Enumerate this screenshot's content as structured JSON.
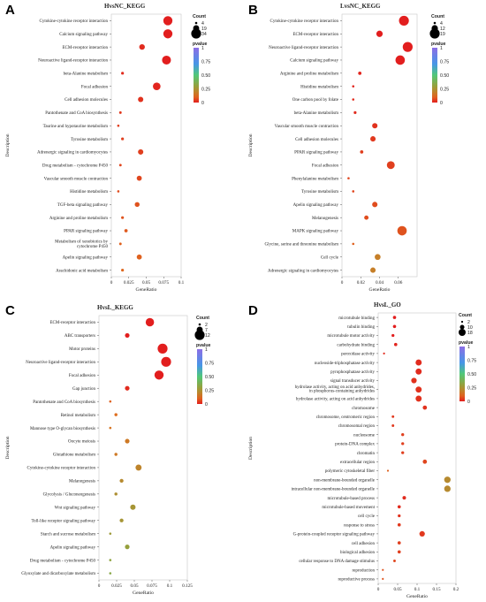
{
  "chart_data": [
    {
      "panel": "A",
      "type": "scatter",
      "title": "HvsNC_KEGG",
      "xlabel": "GeneRatio",
      "ylabel": "Description",
      "xlim": [
        0,
        0.1
      ],
      "xticks": [
        "0",
        "0.025",
        "0.05",
        "0.075",
        "0.1"
      ],
      "xtick_values": [
        0,
        0.025,
        0.05,
        0.075,
        0.1
      ],
      "size_legend": {
        "title": "Count",
        "entries": [
          "4",
          "19",
          "34"
        ],
        "values": [
          4,
          19,
          34
        ],
        "range": [
          4,
          34
        ]
      },
      "color_legend": {
        "title": "pvalue",
        "ticks": [
          "1",
          "0.75",
          "0.50",
          "0.25",
          "0"
        ]
      },
      "points": [
        {
          "category": "Cytokine-cytokine receptor interaction",
          "x": 0.081,
          "count": 31,
          "p": 0.0
        },
        {
          "category": "Calcium signaling pathway",
          "x": 0.081,
          "count": 31,
          "p": 0.0
        },
        {
          "category": "ECM-receptor interaction",
          "x": 0.044,
          "count": 17,
          "p": 0.02
        },
        {
          "category": "Neuroactive ligand-receptor interaction",
          "x": 0.079,
          "count": 30,
          "p": 0.0
        },
        {
          "category": "beta-Alanine metabolism",
          "x": 0.016,
          "count": 6,
          "p": 0.02
        },
        {
          "category": "Focal adhesion",
          "x": 0.065,
          "count": 25,
          "p": 0.01
        },
        {
          "category": "Cell adhesion molecules",
          "x": 0.042,
          "count": 16,
          "p": 0.03
        },
        {
          "category": "Pantothenate and CoA biosynthesis",
          "x": 0.013,
          "count": 5,
          "p": 0.04
        },
        {
          "category": "Taurine and hypotaurine metabolism",
          "x": 0.01,
          "count": 4,
          "p": 0.05
        },
        {
          "category": "Tyrosine metabolism",
          "x": 0.016,
          "count": 6,
          "p": 0.05
        },
        {
          "category": "Adrenergic signaling in cardiomyocytes",
          "x": 0.042,
          "count": 16,
          "p": 0.05
        },
        {
          "category": "Drug metabolism - cytochrome P450",
          "x": 0.013,
          "count": 5,
          "p": 0.06
        },
        {
          "category": "Vascular smooth muscle contraction",
          "x": 0.04,
          "count": 15,
          "p": 0.06
        },
        {
          "category": "Histidine metabolism",
          "x": 0.01,
          "count": 4,
          "p": 0.07
        },
        {
          "category": "TGF-beta signaling pathway",
          "x": 0.037,
          "count": 14,
          "p": 0.08
        },
        {
          "category": "Arginine and proline metabolism",
          "x": 0.016,
          "count": 6,
          "p": 0.08
        },
        {
          "category": "PPAR signaling pathway",
          "x": 0.021,
          "count": 8,
          "p": 0.09
        },
        {
          "category": "Metabolism of xenobiotics by cytochrome P450",
          "x": 0.013,
          "count": 5,
          "p": 0.1
        },
        {
          "category": "Apelin signaling pathway",
          "x": 0.04,
          "count": 15,
          "p": 0.1
        },
        {
          "category": "Arachidonic acid metabolism",
          "x": 0.016,
          "count": 6,
          "p": 0.11
        }
      ]
    },
    {
      "panel": "B",
      "type": "scatter",
      "title": "LvsNC_KEGG",
      "xlabel": "GeneRatio",
      "ylabel": "Description",
      "xlim": [
        0,
        0.08
      ],
      "xticks": [
        "0",
        "0.02",
        "0.04",
        "0.06"
      ],
      "xtick_values": [
        0,
        0.02,
        0.04,
        0.06
      ],
      "size_legend": {
        "title": "Count",
        "entries": [
          "4",
          "12",
          "19"
        ],
        "values": [
          4,
          12,
          19
        ],
        "range": [
          4,
          19
        ]
      },
      "color_legend": {
        "title": "pvalue",
        "ticks": [
          "1",
          "0.75",
          "0.50",
          "0.25",
          "0"
        ]
      },
      "points": [
        {
          "category": "Cytokine-cytokine receptor interaction",
          "x": 0.066,
          "count": 19,
          "p": 0.0
        },
        {
          "category": "ECM-receptor interaction",
          "x": 0.04,
          "count": 12,
          "p": 0.0
        },
        {
          "category": "Neuroactive ligand-receptor interaction",
          "x": 0.07,
          "count": 19,
          "p": 0.0
        },
        {
          "category": "Calcium signaling pathway",
          "x": 0.062,
          "count": 18,
          "p": 0.0
        },
        {
          "category": "Arginine and proline metabolism",
          "x": 0.019,
          "count": 6,
          "p": 0.01
        },
        {
          "category": "Histidine metabolism",
          "x": 0.012,
          "count": 4,
          "p": 0.01
        },
        {
          "category": "One carbon pool by folate",
          "x": 0.012,
          "count": 4,
          "p": 0.02
        },
        {
          "category": "beta-Alanine metabolism",
          "x": 0.014,
          "count": 5,
          "p": 0.02
        },
        {
          "category": "Vascular smooth muscle contraction",
          "x": 0.035,
          "count": 10,
          "p": 0.03
        },
        {
          "category": "Cell adhesion molecules",
          "x": 0.033,
          "count": 10,
          "p": 0.04
        },
        {
          "category": "PPAR signaling pathway",
          "x": 0.021,
          "count": 6,
          "p": 0.05
        },
        {
          "category": "Focal adhesion",
          "x": 0.052,
          "count": 15,
          "p": 0.05
        },
        {
          "category": "Phenylalanine metabolism",
          "x": 0.007,
          "count": 4,
          "p": 0.06
        },
        {
          "category": "Tyrosine metabolism",
          "x": 0.012,
          "count": 4,
          "p": 0.06
        },
        {
          "category": "Apelin signaling pathway",
          "x": 0.035,
          "count": 10,
          "p": 0.07
        },
        {
          "category": "Melanogenesis",
          "x": 0.026,
          "count": 8,
          "p": 0.07
        },
        {
          "category": "MAPK signaling pathway",
          "x": 0.064,
          "count": 18,
          "p": 0.08
        },
        {
          "category": "Glycine, serine and threonine metabolism",
          "x": 0.012,
          "count": 4,
          "p": 0.1
        },
        {
          "category": "Cell cycle",
          "x": 0.038,
          "count": 11,
          "p": 0.18
        },
        {
          "category": "Adrenergic signaling in cardiomyocytes",
          "x": 0.033,
          "count": 10,
          "p": 0.18
        }
      ]
    },
    {
      "panel": "C",
      "type": "scatter",
      "title": "HvsL_KEGG",
      "xlabel": "GeneRatio",
      "ylabel": "Description",
      "xlim": [
        0,
        0.125
      ],
      "xticks": [
        "0",
        "0.025",
        "0.05",
        "0.075",
        "0.1",
        "0.125"
      ],
      "xtick_values": [
        0,
        0.025,
        0.05,
        0.075,
        0.1,
        0.125
      ],
      "size_legend": {
        "title": "Count",
        "entries": [
          "2",
          "7",
          "12"
        ],
        "values": [
          2,
          7,
          12
        ],
        "range": [
          2,
          12
        ]
      },
      "color_legend": {
        "title": "pvalue",
        "ticks": [
          "1",
          "0.75",
          "0.50",
          "0.25",
          "0"
        ]
      },
      "points": [
        {
          "category": "ECM-receptor interaction",
          "x": 0.072,
          "count": 10,
          "p": 0.0
        },
        {
          "category": "ABC transporters",
          "x": 0.04,
          "count": 5,
          "p": 0.0
        },
        {
          "category": "Motor proteins",
          "x": 0.09,
          "count": 12,
          "p": 0.0
        },
        {
          "category": "Neuroactive ligand-receptor interaction",
          "x": 0.095,
          "count": 12,
          "p": 0.0
        },
        {
          "category": "Focal adhesion",
          "x": 0.085,
          "count": 11,
          "p": 0.0
        },
        {
          "category": "Gap junction",
          "x": 0.04,
          "count": 5,
          "p": 0.02
        },
        {
          "category": "Pantothenate and CoA biosynthesis",
          "x": 0.016,
          "count": 2,
          "p": 0.1
        },
        {
          "category": "Retinol metabolism",
          "x": 0.024,
          "count": 3,
          "p": 0.12
        },
        {
          "category": "Mannose type O-glycan biosynthesis",
          "x": 0.016,
          "count": 2,
          "p": 0.14
        },
        {
          "category": "Oocyte meiosis",
          "x": 0.04,
          "count": 5,
          "p": 0.16
        },
        {
          "category": "Glutathione metabolism",
          "x": 0.024,
          "count": 3,
          "p": 0.16
        },
        {
          "category": "Cytokine-cytokine receptor interaction",
          "x": 0.056,
          "count": 7,
          "p": 0.2
        },
        {
          "category": "Melanogenesis",
          "x": 0.032,
          "count": 4,
          "p": 0.22
        },
        {
          "category": "Glycolysis / Gluconeogenesis",
          "x": 0.024,
          "count": 3,
          "p": 0.24
        },
        {
          "category": "Wnt signaling pathway",
          "x": 0.048,
          "count": 6,
          "p": 0.26
        },
        {
          "category": "Toll-like receptor signaling pathway",
          "x": 0.032,
          "count": 4,
          "p": 0.26
        },
        {
          "category": "Starch and sucrose metabolism",
          "x": 0.016,
          "count": 2,
          "p": 0.28
        },
        {
          "category": "Apelin signaling pathway",
          "x": 0.04,
          "count": 5,
          "p": 0.3
        },
        {
          "category": "Drug metabolism - cytochrome P450",
          "x": 0.016,
          "count": 2,
          "p": 0.32
        },
        {
          "category": "Glyoxylate and dicarboxylate metabolism",
          "x": 0.016,
          "count": 2,
          "p": 0.34
        }
      ]
    },
    {
      "panel": "D",
      "type": "scatter",
      "title": "HvsL_GO",
      "xlabel": "GeneRatio",
      "ylabel": "Description",
      "xlim": [
        0,
        0.2
      ],
      "xticks": [
        "0",
        "0.05",
        "0.1",
        "0.15",
        "0.2"
      ],
      "xtick_values": [
        0,
        0.05,
        0.1,
        0.15,
        0.2
      ],
      "size_legend": {
        "title": "Count",
        "entries": [
          "2",
          "10",
          "18"
        ],
        "values": [
          2,
          10,
          18
        ],
        "range": [
          2,
          18
        ]
      },
      "color_legend": {
        "title": "pvalue",
        "ticks": [
          "1",
          "0.75",
          "0.50",
          "0.25",
          "0"
        ]
      },
      "points": [
        {
          "category": "microtubule binding",
          "x": 0.042,
          "count": 6,
          "p": 0.0
        },
        {
          "category": "tubulin binding",
          "x": 0.042,
          "count": 6,
          "p": 0.0
        },
        {
          "category": "microtubule motor activity",
          "x": 0.038,
          "count": 5,
          "p": 0.0
        },
        {
          "category": "carbohydrate binding",
          "x": 0.045,
          "count": 6,
          "p": 0.01
        },
        {
          "category": "peroxidase activity",
          "x": 0.015,
          "count": 2,
          "p": 0.02
        },
        {
          "category": "nucleoside-triphosphatase activity",
          "x": 0.104,
          "count": 15,
          "p": 0.02
        },
        {
          "category": "pyrophosphatase activity",
          "x": 0.104,
          "count": 15,
          "p": 0.02
        },
        {
          "category": "signal transducer activity",
          "x": 0.092,
          "count": 13,
          "p": 0.03
        },
        {
          "category": "hydrolase activity, acting on acid anhydrides, in phosphorus-containing anhydrides",
          "x": 0.104,
          "count": 15,
          "p": 0.03
        },
        {
          "category": "hydrolase activity, acting on acid anhydrides",
          "x": 0.104,
          "count": 15,
          "p": 0.03
        },
        {
          "category": "chromosome",
          "x": 0.12,
          "count": 9,
          "p": 0.03
        },
        {
          "category": "chromosome, centromeric region",
          "x": 0.038,
          "count": 4,
          "p": 0.04
        },
        {
          "category": "chromosomal region",
          "x": 0.038,
          "count": 4,
          "p": 0.04
        },
        {
          "category": "nucleosome",
          "x": 0.063,
          "count": 5,
          "p": 0.05
        },
        {
          "category": "protein-DNA complex",
          "x": 0.063,
          "count": 5,
          "p": 0.05
        },
        {
          "category": "chromatin",
          "x": 0.063,
          "count": 5,
          "p": 0.05
        },
        {
          "category": "extracellular region",
          "x": 0.12,
          "count": 9,
          "p": 0.06
        },
        {
          "category": "polymeric cytoskeletal fiber",
          "x": 0.025,
          "count": 2,
          "p": 0.1
        },
        {
          "category": "non-membrane-bounded organelle",
          "x": 0.178,
          "count": 16,
          "p": 0.22
        },
        {
          "category": "intracellular non-membrane-bounded organelle",
          "x": 0.178,
          "count": 16,
          "p": 0.22
        },
        {
          "category": "microtubule-based process",
          "x": 0.067,
          "count": 7,
          "p": 0.02
        },
        {
          "category": "microtubule-based movement",
          "x": 0.054,
          "count": 6,
          "p": 0.02
        },
        {
          "category": "cell cycle",
          "x": 0.054,
          "count": 5,
          "p": 0.03
        },
        {
          "category": "response to stress",
          "x": 0.054,
          "count": 6,
          "p": 0.04
        },
        {
          "category": "G-protein-coupled receptor signaling pathway",
          "x": 0.113,
          "count": 13,
          "p": 0.04
        },
        {
          "category": "cell adhesion",
          "x": 0.054,
          "count": 6,
          "p": 0.05
        },
        {
          "category": "biological adhesion",
          "x": 0.054,
          "count": 6,
          "p": 0.05
        },
        {
          "category": "cellular response to DNA damage stimulus",
          "x": 0.042,
          "count": 4,
          "p": 0.06
        },
        {
          "category": "reproduction",
          "x": 0.012,
          "count": 2,
          "p": 0.08
        },
        {
          "category": "reproductive process",
          "x": 0.012,
          "count": 2,
          "p": 0.08
        }
      ]
    }
  ]
}
